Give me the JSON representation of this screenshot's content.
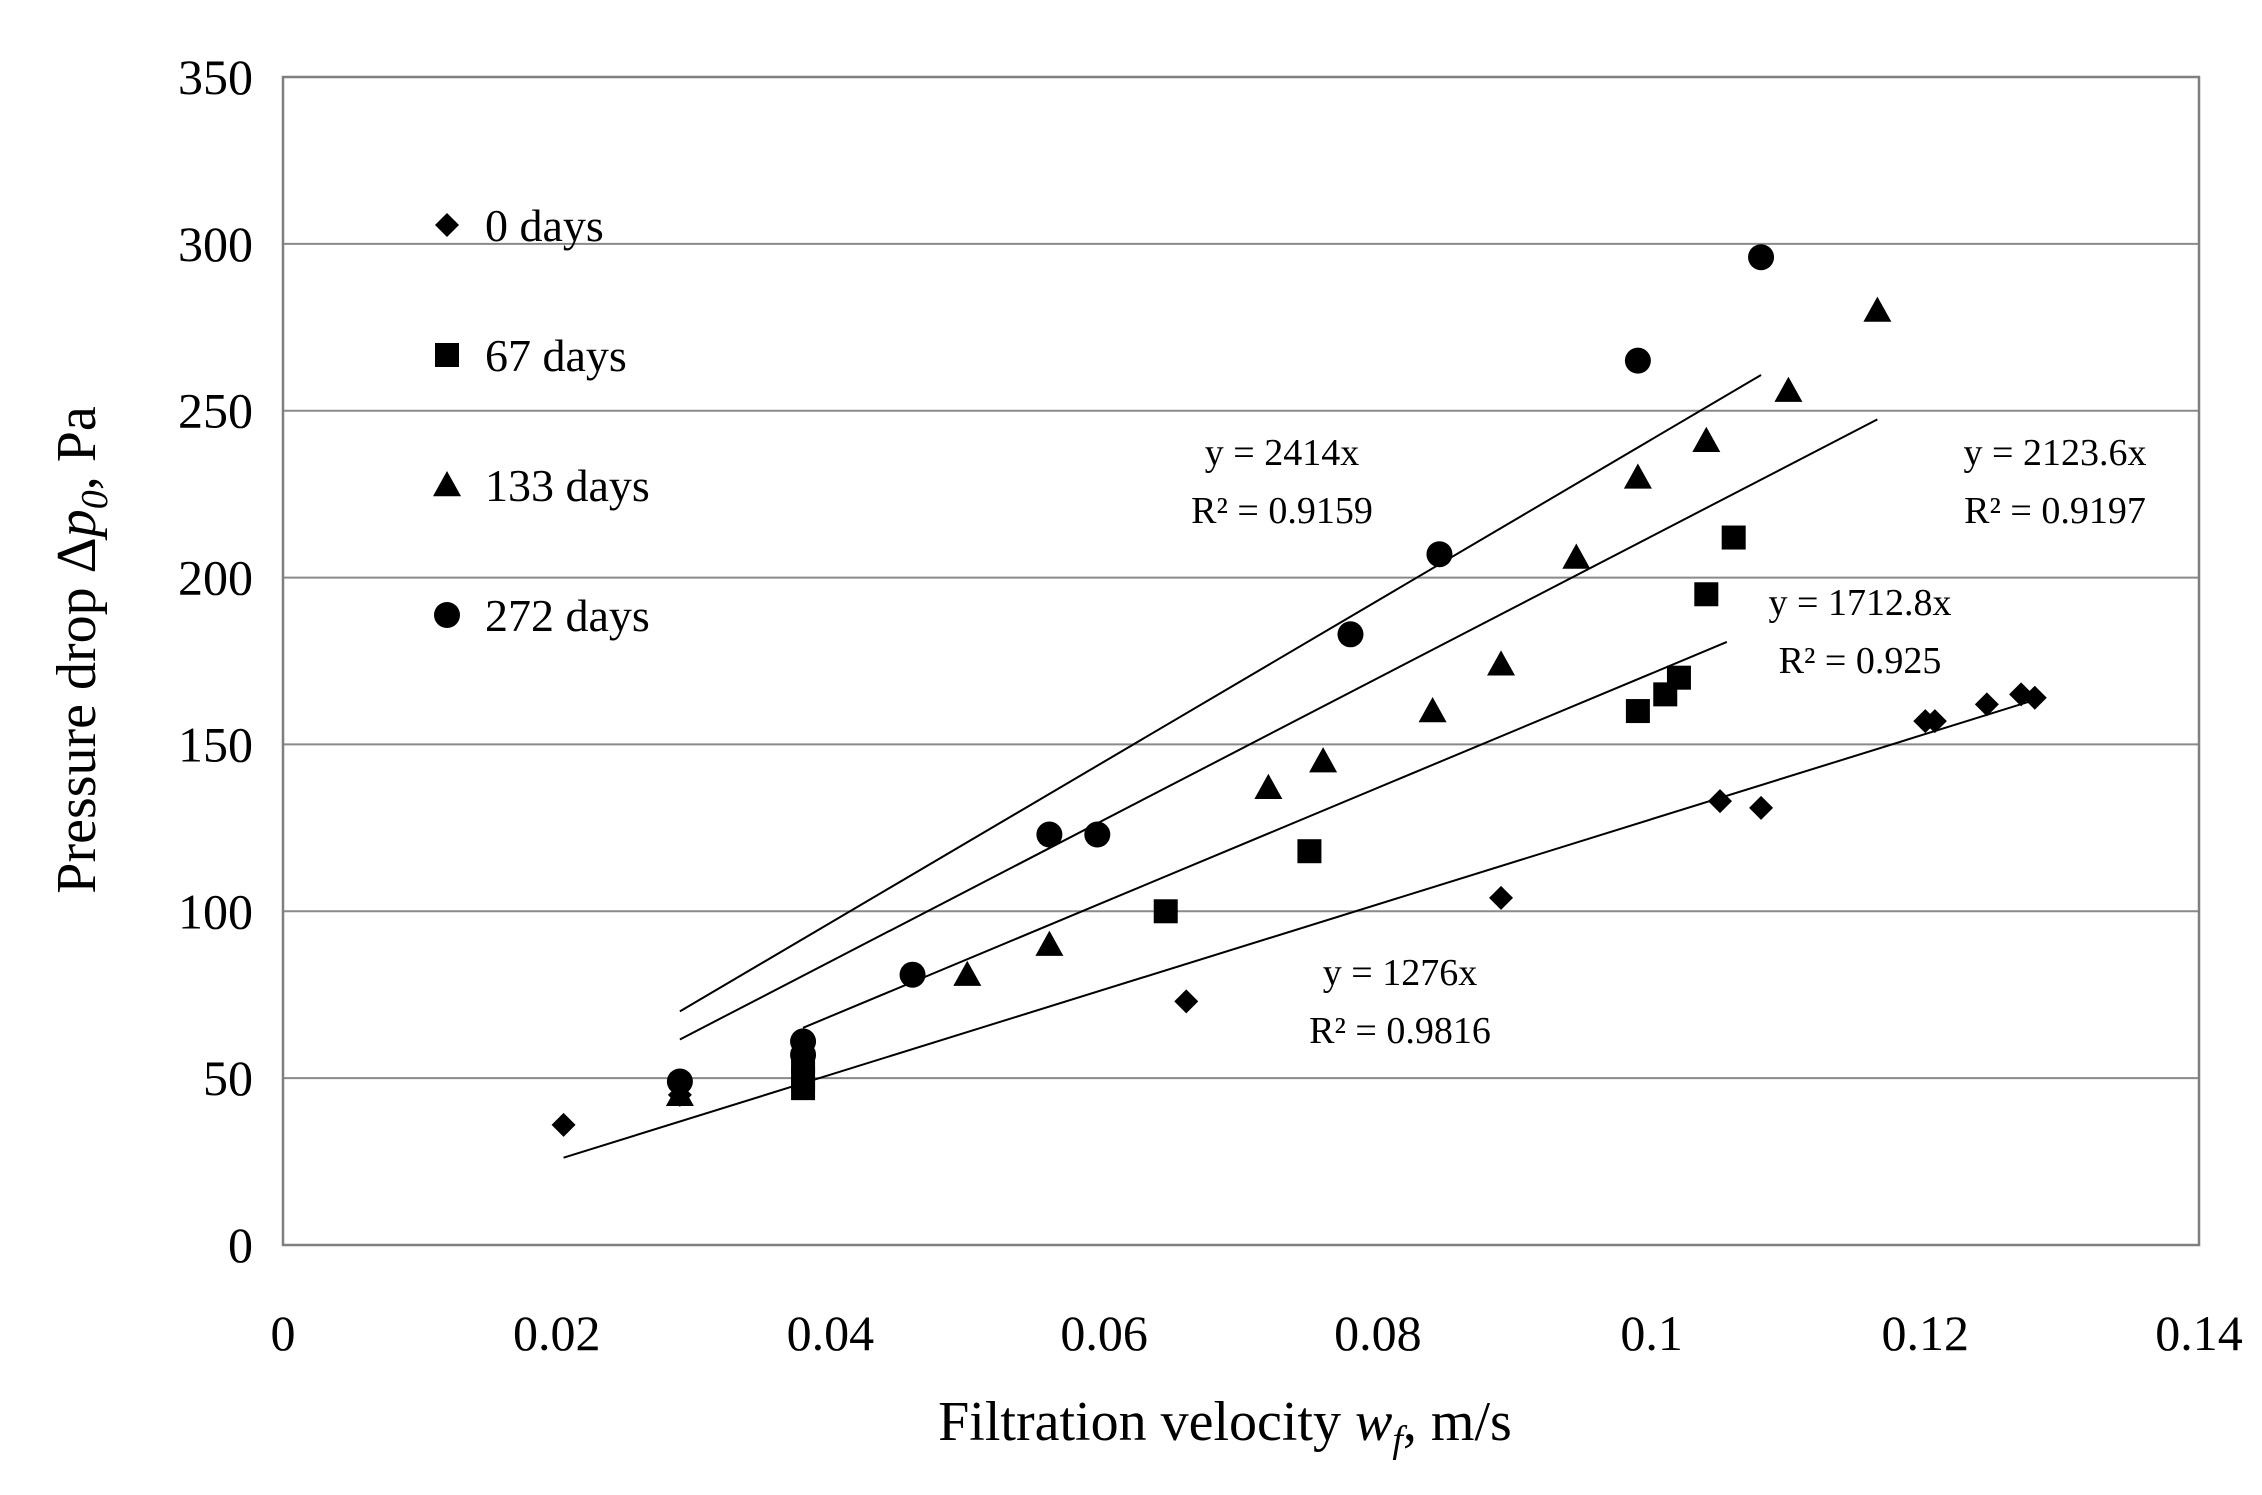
{
  "chart_data": {
    "type": "scatter",
    "title": "",
    "xlabel": "Filtration velocity w_f, m/s",
    "ylabel": "Pressure drop Δp_0, Pa",
    "xlabel_parts": {
      "main": "Filtration velocity ",
      "var": "w",
      "sub": "f",
      "unit": ", m/s"
    },
    "ylabel_parts": {
      "main": "Pressure drop Δ",
      "var": "p",
      "sub": "0",
      "unit": ", Pa"
    },
    "xlim": [
      0,
      0.14
    ],
    "ylim": [
      0,
      350
    ],
    "x_ticks": [
      0,
      0.02,
      0.04,
      0.06,
      0.08,
      0.1,
      0.12,
      0.14
    ],
    "x_tick_labels": [
      "0",
      "0.02",
      "0.04",
      "0.06",
      "0.08",
      "0.1",
      "0.12",
      "0.14"
    ],
    "y_ticks": [
      0,
      50,
      100,
      150,
      200,
      250,
      300,
      350
    ],
    "y_tick_labels": [
      "0",
      "50",
      "100",
      "150",
      "200",
      "250",
      "300",
      "350"
    ],
    "grid": "horizontal",
    "legend_position": "top-left",
    "series": [
      {
        "name": "0 days",
        "marker": "diamond",
        "x": [
          0.0205,
          0.029,
          0.066,
          0.089,
          0.105,
          0.108,
          0.12,
          0.1207,
          0.1245,
          0.127,
          0.128
        ],
        "y": [
          36,
          45,
          73,
          104,
          133,
          131,
          157,
          157,
          162,
          165,
          164
        ],
        "trendline": {
          "slope": 1276,
          "x_range": [
            0.0205,
            0.128
          ],
          "equation": "y = 1276x",
          "r2": "R² = 0.9816"
        }
      },
      {
        "name": "67 days",
        "marker": "square",
        "x": [
          0.038,
          0.038,
          0.038,
          0.0645,
          0.075,
          0.099,
          0.101,
          0.102,
          0.104,
          0.106
        ],
        "y": [
          47,
          50,
          55,
          100,
          118,
          160,
          165,
          170,
          195,
          212
        ],
        "trendline": {
          "slope": 1712.8,
          "x_range": [
            0.038,
            0.1055
          ],
          "equation": "y = 1712.8x",
          "r2": "R² = 0.925"
        }
      },
      {
        "name": "133 days",
        "marker": "triangle",
        "x": [
          0.029,
          0.05,
          0.056,
          0.072,
          0.076,
          0.084,
          0.089,
          0.0945,
          0.099,
          0.104,
          0.11,
          0.1165
        ],
        "y": [
          45,
          81,
          90,
          137,
          145,
          160,
          174,
          206,
          230,
          241,
          256,
          280
        ],
        "trendline": {
          "slope": 2123.6,
          "x_range": [
            0.029,
            0.1165
          ],
          "equation": "y = 2123.6x",
          "r2": "R² = 0.9197"
        }
      },
      {
        "name": "272 days",
        "marker": "circle",
        "x": [
          0.029,
          0.038,
          0.038,
          0.046,
          0.056,
          0.0595,
          0.078,
          0.0845,
          0.099,
          0.108
        ],
        "y": [
          49,
          57,
          61,
          81,
          123,
          123,
          183,
          207,
          265,
          296
        ],
        "trendline": {
          "slope": 2414,
          "x_range": [
            0.029,
            0.108
          ],
          "equation": "y = 2414x",
          "r2": "R² = 0.9159"
        }
      }
    ]
  }
}
